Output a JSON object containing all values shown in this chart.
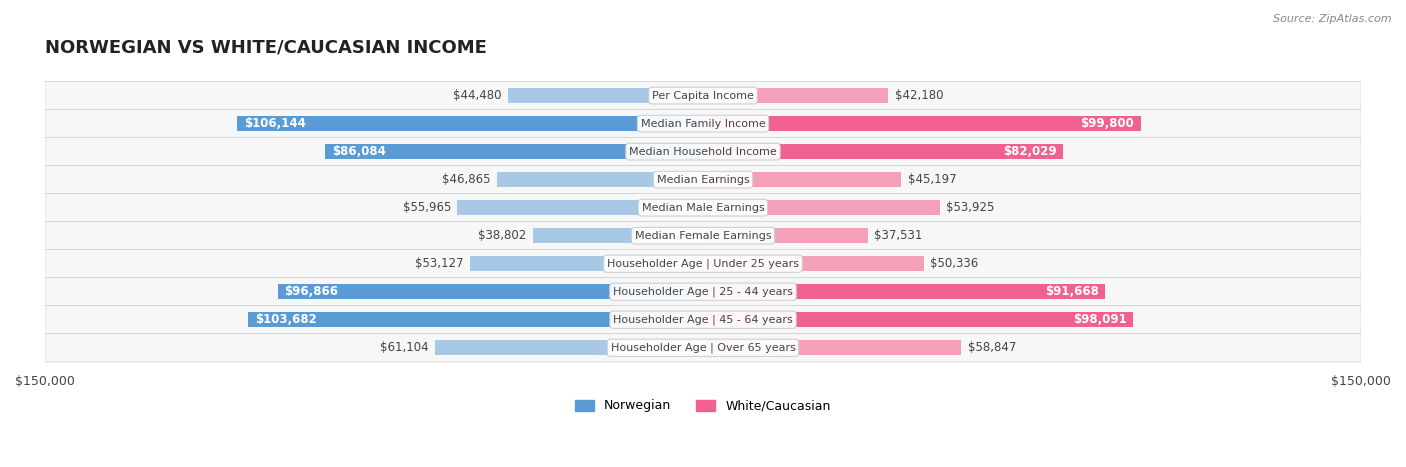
{
  "title": "NORWEGIAN VS WHITE/CAUCASIAN INCOME",
  "source": "Source: ZipAtlas.com",
  "categories": [
    "Per Capita Income",
    "Median Family Income",
    "Median Household Income",
    "Median Earnings",
    "Median Male Earnings",
    "Median Female Earnings",
    "Householder Age | Under 25 years",
    "Householder Age | 25 - 44 years",
    "Householder Age | 45 - 64 years",
    "Householder Age | Over 65 years"
  ],
  "norwegian_values": [
    44480,
    106144,
    86084,
    46865,
    55965,
    38802,
    53127,
    96866,
    103682,
    61104
  ],
  "white_values": [
    42180,
    99800,
    82029,
    45197,
    53925,
    37531,
    50336,
    91668,
    98091,
    58847
  ],
  "norwegian_labels": [
    "$44,480",
    "$106,144",
    "$86,084",
    "$46,865",
    "$55,965",
    "$38,802",
    "$53,127",
    "$96,866",
    "$103,682",
    "$61,104"
  ],
  "white_labels": [
    "$42,180",
    "$99,800",
    "$82,029",
    "$45,197",
    "$53,925",
    "$37,531",
    "$50,336",
    "$91,668",
    "$98,091",
    "$58,847"
  ],
  "norwegian_color_light": "#a8c8e8",
  "norwegian_color_dark": "#5b9bd5",
  "white_color_light": "#f4a0b8",
  "white_color_dark": "#f06090",
  "max_value": 150000,
  "bar_height": 0.55,
  "background_color": "#ffffff",
  "row_bg_color": "#f0f0f0",
  "legend_norwegian": "Norwegian",
  "legend_white": "White/Caucasian",
  "x_label_left": "$150,000",
  "x_label_right": "$150,000",
  "title_fontsize": 13,
  "label_fontsize": 8.5,
  "category_fontsize": 8,
  "norwegian_dark_threshold": 70000,
  "white_dark_threshold": 70000
}
